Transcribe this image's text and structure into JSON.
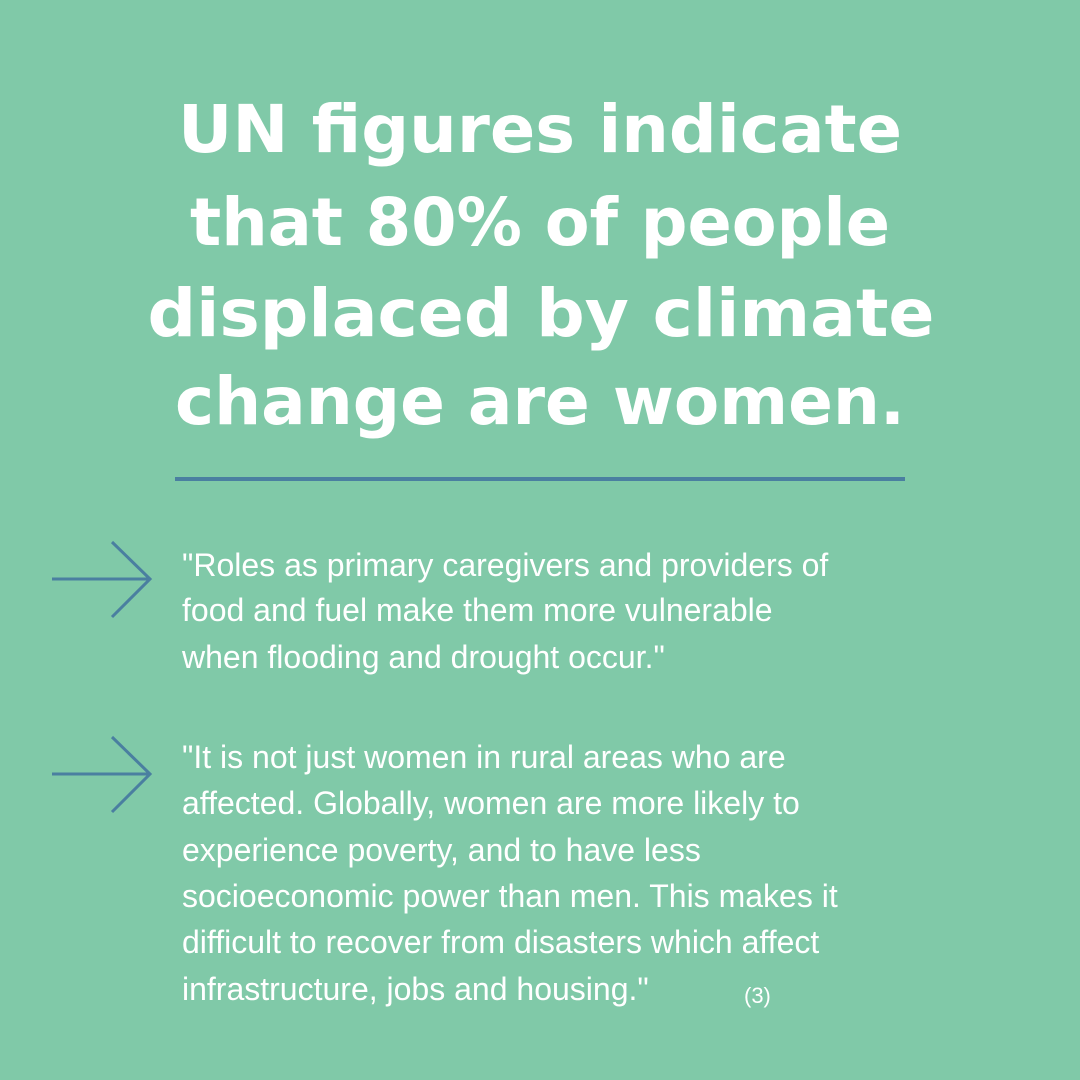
{
  "headline": {
    "lines": [
      "UN figures indicate",
      "that 80% of people",
      "displaced by climate",
      "change are women."
    ]
  },
  "quotes": [
    {
      "lines": [
        "\"Roles as primary caregivers and providers of",
        "food and fuel make them more vulnerable",
        "when flooding and drought occur.\""
      ]
    },
    {
      "lines": [
        "\"It is not just women in rural areas who are",
        "affected. Globally, women are more likely to",
        "experience poverty, and to have less",
        "socioeconomic power than men. This makes it",
        "difficult to recover from disasters which affect",
        "infrastructure, jobs and housing.\""
      ],
      "citation": "(3)"
    }
  ]
}
